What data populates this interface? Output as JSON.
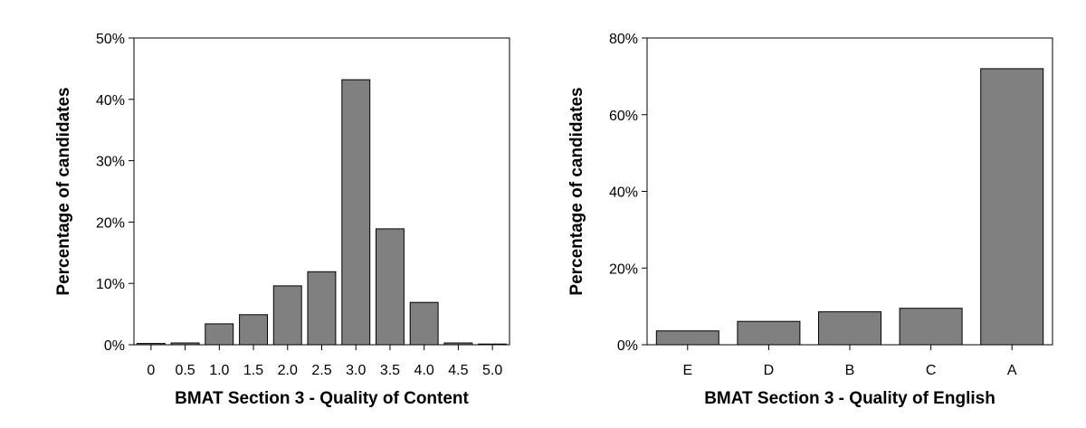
{
  "chart_data": [
    {
      "type": "bar",
      "title": "",
      "xlabel": "BMAT Section 3 - Quality of Content",
      "ylabel": "Percentage of candidates",
      "categories": [
        "0",
        "0.5",
        "1.0",
        "1.5",
        "2.0",
        "2.5",
        "3.0",
        "3.5",
        "4.0",
        "4.5",
        "5.0"
      ],
      "values": [
        0.2,
        0.3,
        3.4,
        4.9,
        9.6,
        11.9,
        43.2,
        18.9,
        6.9,
        0.3,
        0.0
      ],
      "ylim": [
        0,
        50
      ],
      "yticks": [
        0,
        10,
        20,
        30,
        40,
        50
      ],
      "ytick_labels": [
        "0%",
        "10%",
        "20%",
        "30%",
        "40%",
        "50%"
      ],
      "grid": false,
      "bar_color": "#808080"
    },
    {
      "type": "bar",
      "title": "",
      "xlabel": "BMAT Section 3 - Quality of English",
      "ylabel": "Percentage of candidates",
      "categories": [
        "E",
        "D",
        "B",
        "C",
        "A"
      ],
      "values": [
        3.6,
        6.1,
        8.6,
        9.5,
        72.0
      ],
      "ylim": [
        0,
        80
      ],
      "yticks": [
        0,
        20,
        40,
        60,
        80
      ],
      "ytick_labels": [
        "0%",
        "20%",
        "40%",
        "60%",
        "80%"
      ],
      "grid": false,
      "bar_color": "#808080"
    }
  ]
}
